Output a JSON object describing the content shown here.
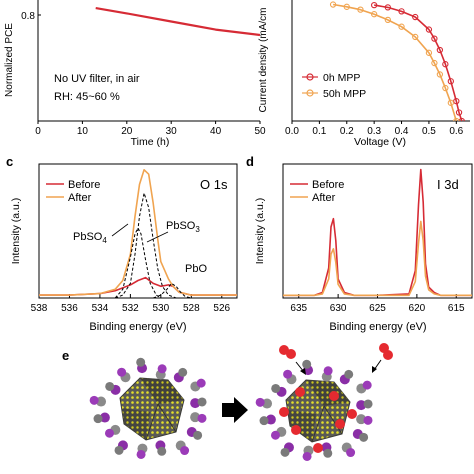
{
  "colors": {
    "red": "#d62b35",
    "orange": "#f0a450",
    "axis": "#000000",
    "dashed": "#000000"
  },
  "panels": {
    "a": {
      "ylabel": "Normalized PCE",
      "xlabel": "Time (h)",
      "yticks": [
        "0.8"
      ],
      "xticks": [
        "0",
        "10",
        "20",
        "30",
        "40",
        "50"
      ],
      "note1": "No UV filter, in air",
      "note2": "RH: 45~60 %"
    },
    "b": {
      "ylabel": "Current density (mA/cm",
      "xlabel": "Voltage (V)",
      "xticks": [
        "0.0",
        "0.1",
        "0.2",
        "0.3",
        "0.4",
        "0.5",
        "0.6"
      ],
      "legend": [
        "0h MPP",
        "50h MPP"
      ]
    },
    "c": {
      "letter": "c",
      "ylabel": "Intensity (a.u.)",
      "xlabel": "Binding energy (eV)",
      "xticks": [
        "538",
        "536",
        "534",
        "532",
        "530",
        "528",
        "526"
      ],
      "legend": [
        "Before",
        "After"
      ],
      "tag": "O 1s",
      "ann_pbso4": "PbSO",
      "ann_pbso4_sub": "4",
      "ann_pbso3": "PbSO",
      "ann_pbso3_sub": "3",
      "ann_pbo": "PbO"
    },
    "d": {
      "letter": "d",
      "ylabel": "Intensity (a.u.)",
      "xlabel": "Binding energy (eV)",
      "xticks": [
        "635",
        "630",
        "625",
        "620",
        "615"
      ],
      "legend": [
        "Before",
        "After"
      ],
      "tag": "I 3d"
    },
    "e": {
      "letter": "e"
    }
  },
  "chart_data": [
    {
      "panel": "a",
      "type": "line",
      "xlabel": "Time (h)",
      "ylabel": "Normalized PCE",
      "xlim": [
        0,
        50
      ],
      "series": [
        {
          "x": [
            13,
            20,
            30,
            40,
            50
          ],
          "values": [
            0.92,
            0.9,
            0.87,
            0.84,
            0.82
          ]
        }
      ]
    },
    {
      "panel": "b",
      "type": "line",
      "xlabel": "Voltage (V)",
      "xlim": [
        0,
        0.65
      ],
      "series": [
        {
          "name": "0h MPP",
          "x": [
            0.3,
            0.35,
            0.4,
            0.45,
            0.5,
            0.52,
            0.54,
            0.56,
            0.58,
            0.6,
            0.61,
            0.62
          ],
          "values": [
            20.4,
            20.0,
            19.3,
            18.3,
            16.1,
            14.5,
            12.5,
            10.0,
            7.0,
            3.5,
            1.5,
            0
          ]
        },
        {
          "name": "50h MPP",
          "x": [
            0.15,
            0.2,
            0.25,
            0.3,
            0.35,
            0.4,
            0.45,
            0.5,
            0.52,
            0.54,
            0.56,
            0.58,
            0.6
          ],
          "values": [
            20.5,
            20.1,
            19.6,
            18.8,
            17.8,
            16.6,
            14.8,
            12.0,
            10.2,
            8.2,
            5.8,
            3.2,
            0
          ]
        }
      ]
    },
    {
      "panel": "c",
      "type": "line",
      "xlabel": "Binding energy (eV)",
      "ylabel": "Intensity (a.u.)",
      "xlim": [
        538,
        525
      ],
      "xreversed": true,
      "series": [
        {
          "name": "Before",
          "x": [
            538,
            536,
            534,
            533,
            532,
            531.5,
            531,
            530.5,
            530,
            529.5,
            529.2,
            528.8,
            528,
            526,
            525
          ],
          "values": [
            0.02,
            0.02,
            0.03,
            0.05,
            0.09,
            0.12,
            0.14,
            0.1,
            0.08,
            0.09,
            0.08,
            0.04,
            0.02,
            0.02,
            0.02
          ]
        },
        {
          "name": "After",
          "x": [
            538,
            536,
            534,
            533,
            532.5,
            532,
            531.7,
            531.4,
            531.1,
            530.8,
            530.5,
            530.2,
            530,
            529.5,
            529.2,
            528.8,
            528,
            526,
            525
          ],
          "values": [
            0.02,
            0.02,
            0.03,
            0.06,
            0.12,
            0.3,
            0.56,
            0.78,
            0.88,
            0.85,
            0.65,
            0.4,
            0.25,
            0.13,
            0.08,
            0.04,
            0.02,
            0.02,
            0.02
          ]
        },
        {
          "name": "PbSO4",
          "x": [
            533,
            532.5,
            532,
            531.7,
            531.5,
            531.3,
            531,
            530.7,
            530.3,
            530
          ],
          "values": [
            0.0,
            0.06,
            0.28,
            0.44,
            0.48,
            0.44,
            0.26,
            0.1,
            0.02,
            0.0
          ]
        },
        {
          "name": "PbSO3",
          "x": [
            533,
            532.5,
            532,
            531.7,
            531.4,
            531.1,
            530.8,
            530.5,
            530.2,
            529.9,
            529.5,
            529
          ],
          "values": [
            0.0,
            0.02,
            0.1,
            0.3,
            0.56,
            0.72,
            0.62,
            0.4,
            0.2,
            0.08,
            0.02,
            0.0
          ]
        },
        {
          "name": "PbO",
          "x": [
            530.5,
            530,
            529.6,
            529.3,
            529,
            528.7,
            528.4,
            528
          ],
          "values": [
            0.0,
            0.02,
            0.06,
            0.1,
            0.08,
            0.04,
            0.01,
            0.0
          ]
        }
      ]
    },
    {
      "panel": "d",
      "type": "line",
      "xlabel": "Binding energy (eV)",
      "ylabel": "Intensity (a.u.)",
      "xlim": [
        637,
        613
      ],
      "xreversed": true,
      "series": [
        {
          "name": "Before",
          "x": [
            637,
            633,
            632,
            631.2,
            630.9,
            630.6,
            630.3,
            630,
            629.2,
            628,
            625,
            621,
            620.2,
            619.8,
            619.5,
            619.2,
            618.9,
            618.5,
            617.8,
            617,
            613
          ],
          "values": [
            0.02,
            0.02,
            0.04,
            0.22,
            0.52,
            0.58,
            0.42,
            0.14,
            0.04,
            0.02,
            0.02,
            0.03,
            0.2,
            0.68,
            0.94,
            0.7,
            0.25,
            0.08,
            0.04,
            0.02,
            0.02
          ]
        },
        {
          "name": "After",
          "x": [
            637,
            633,
            632,
            631.2,
            630.9,
            630.6,
            630.3,
            630,
            629.2,
            628,
            625,
            621,
            620.2,
            619.8,
            619.5,
            619.2,
            618.9,
            618.5,
            617.8,
            617,
            613
          ],
          "values": [
            0.02,
            0.02,
            0.03,
            0.14,
            0.32,
            0.36,
            0.26,
            0.1,
            0.03,
            0.02,
            0.02,
            0.02,
            0.12,
            0.4,
            0.56,
            0.42,
            0.16,
            0.06,
            0.03,
            0.02,
            0.02
          ]
        }
      ]
    }
  ]
}
